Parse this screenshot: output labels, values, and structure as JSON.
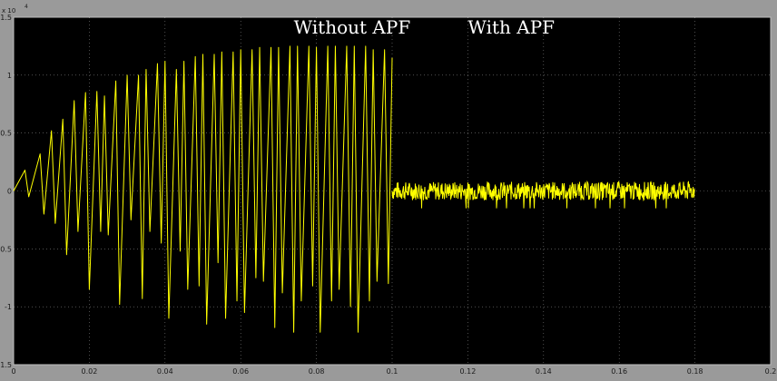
{
  "chart_data": {
    "type": "line",
    "title": "",
    "xlabel": "",
    "ylabel": "",
    "xlim": [
      0,
      0.2
    ],
    "ylim": [
      -1.5,
      1.5
    ],
    "y_exponent_label": "x 10",
    "y_exponent_power": "4",
    "x_ticks": [
      "0",
      "0.02",
      "0.04",
      "0.06",
      "0.08",
      "0.1",
      "0.12",
      "0.14",
      "0.16",
      "0.18",
      "0.2"
    ],
    "y_ticks": [
      "1.5",
      "1",
      "0.5",
      "0",
      "-0.5",
      "-1",
      "-1.5"
    ],
    "grid": true,
    "colors": {
      "background": "#000000",
      "trace": "#ffff00",
      "grid": "#ffffff",
      "frame": "#9a9a9a"
    },
    "annotations": [
      {
        "text": "Without APF",
        "x": 0.074,
        "y": 1.36
      },
      {
        "text": "With APF",
        "x": 0.12,
        "y": 1.36
      }
    ],
    "series": [
      {
        "segment": "without_apf",
        "t_end": 0.1,
        "x": [
          0,
          0.003,
          0.004,
          0.007,
          0.008,
          0.01,
          0.011,
          0.013,
          0.014,
          0.016,
          0.017,
          0.019,
          0.02,
          0.022,
          0.023,
          0.024,
          0.025,
          0.027,
          0.028,
          0.03,
          0.031,
          0.033,
          0.034,
          0.035,
          0.036,
          0.038,
          0.039,
          0.04,
          0.041,
          0.043,
          0.044,
          0.045,
          0.046,
          0.048,
          0.049,
          0.05,
          0.051,
          0.053,
          0.054,
          0.055,
          0.056,
          0.058,
          0.059,
          0.06,
          0.061,
          0.063,
          0.064,
          0.065,
          0.066,
          0.068,
          0.069,
          0.07,
          0.071,
          0.073,
          0.074,
          0.075,
          0.076,
          0.078,
          0.079,
          0.08,
          0.081,
          0.083,
          0.084,
          0.085,
          0.086,
          0.088,
          0.089,
          0.09,
          0.091,
          0.093,
          0.094,
          0.095,
          0.096,
          0.098,
          0.099,
          0.1
        ],
        "y": [
          0,
          0.18,
          -0.05,
          0.32,
          -0.2,
          0.52,
          -0.28,
          0.62,
          -0.55,
          0.78,
          -0.35,
          0.85,
          -0.85,
          0.86,
          -0.35,
          0.82,
          -0.38,
          0.95,
          -0.98,
          1.0,
          -0.25,
          1.0,
          -0.93,
          1.05,
          -0.35,
          1.1,
          -0.45,
          1.12,
          -1.1,
          1.05,
          -0.52,
          1.12,
          -0.85,
          1.16,
          -0.82,
          1.18,
          -1.15,
          1.18,
          -0.62,
          1.2,
          -1.1,
          1.2,
          -0.95,
          1.22,
          -1.05,
          1.22,
          -0.75,
          1.24,
          -0.78,
          1.24,
          -1.18,
          1.24,
          -0.88,
          1.25,
          -1.22,
          1.25,
          -0.95,
          1.25,
          -0.82,
          1.24,
          -1.22,
          1.25,
          -0.95,
          1.25,
          -0.85,
          1.25,
          -1.0,
          1.25,
          -1.22,
          1.25,
          -0.95,
          1.22,
          -0.78,
          1.22,
          -0.8,
          1.15
        ]
      },
      {
        "segment": "with_apf",
        "t_start": 0.1,
        "t_end": 0.18,
        "mean": 0.0,
        "ripple_amplitude": 0.08,
        "spike_min": -0.15
      }
    ]
  }
}
